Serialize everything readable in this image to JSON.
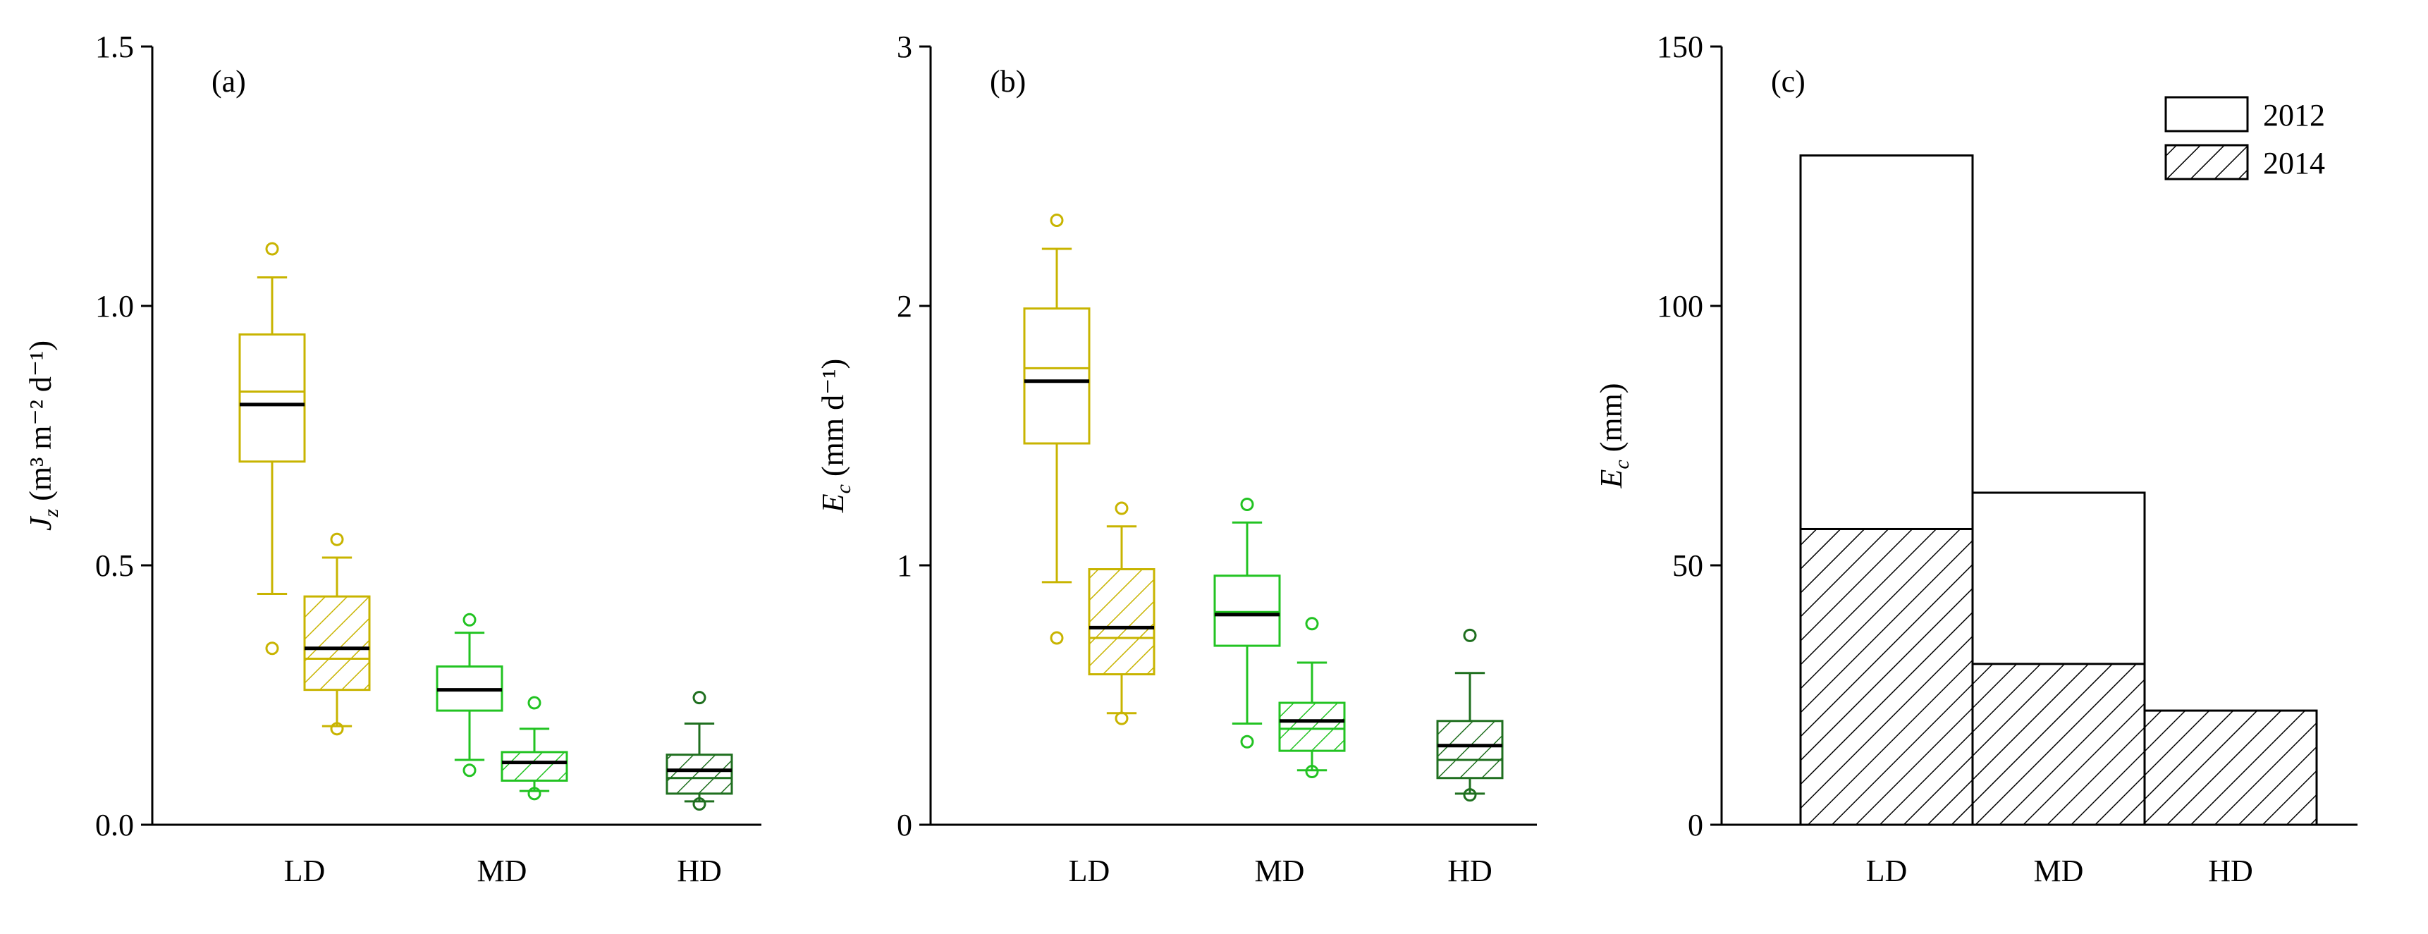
{
  "colors": {
    "LD": "#c8b400",
    "MD": "#22c322",
    "HD": "#1f6f1f",
    "median": "#000000",
    "axis": "#000000"
  },
  "chart_data": [
    {
      "type": "box",
      "panel_label": "(a)",
      "ylabel_main": "J",
      "ylabel_sub": "z",
      "ylabel_rest": " (m³ m⁻² d⁻¹)",
      "ylim": [
        0,
        1.5
      ],
      "yticks": [
        0,
        0.5,
        1.0,
        1.5
      ],
      "ytick_labels": [
        "0.0",
        "0.5",
        "1.0",
        "1.5"
      ],
      "categories": [
        "LD",
        "MD",
        "HD"
      ],
      "boxes": [
        {
          "category": "LD",
          "year": "2012",
          "hatched": false,
          "q1": 0.7,
          "median": 0.835,
          "mean": 0.81,
          "q3": 0.945,
          "whisker_low": 0.445,
          "whisker_high": 1.055,
          "outliers": [
            0.34,
            1.11
          ]
        },
        {
          "category": "LD",
          "year": "2014",
          "hatched": true,
          "q1": 0.26,
          "median": 0.32,
          "mean": 0.34,
          "q3": 0.44,
          "whisker_low": 0.19,
          "whisker_high": 0.515,
          "outliers": [
            0.185,
            0.55
          ]
        },
        {
          "category": "MD",
          "year": "2012",
          "hatched": false,
          "q1": 0.22,
          "median": 0.26,
          "mean": 0.26,
          "q3": 0.305,
          "whisker_low": 0.125,
          "whisker_high": 0.37,
          "outliers": [
            0.105,
            0.395
          ]
        },
        {
          "category": "MD",
          "year": "2014",
          "hatched": true,
          "q1": 0.085,
          "median": 0.12,
          "mean": 0.12,
          "q3": 0.14,
          "whisker_low": 0.065,
          "whisker_high": 0.185,
          "outliers": [
            0.06,
            0.235
          ]
        },
        {
          "category": "HD",
          "year": "2014",
          "hatched": true,
          "q1": 0.06,
          "median": 0.09,
          "mean": 0.105,
          "q3": 0.135,
          "whisker_low": 0.045,
          "whisker_high": 0.195,
          "outliers": [
            0.04,
            0.245
          ]
        }
      ]
    },
    {
      "type": "box",
      "panel_label": "(b)",
      "ylabel_main": "E",
      "ylabel_sub": "c",
      "ylabel_rest": " (mm d⁻¹)",
      "ylim": [
        0,
        3
      ],
      "yticks": [
        0,
        1,
        2,
        3
      ],
      "ytick_labels": [
        "0",
        "1",
        "2",
        "3"
      ],
      "categories": [
        "LD",
        "MD",
        "HD"
      ],
      "boxes": [
        {
          "category": "LD",
          "year": "2012",
          "hatched": false,
          "q1": 1.47,
          "median": 1.76,
          "mean": 1.71,
          "q3": 1.99,
          "whisker_low": 0.935,
          "whisker_high": 2.22,
          "outliers": [
            0.72,
            2.33
          ]
        },
        {
          "category": "LD",
          "year": "2014",
          "hatched": true,
          "q1": 0.58,
          "median": 0.72,
          "mean": 0.76,
          "q3": 0.985,
          "whisker_low": 0.43,
          "whisker_high": 1.15,
          "outliers": [
            0.41,
            1.22
          ]
        },
        {
          "category": "MD",
          "year": "2012",
          "hatched": false,
          "q1": 0.69,
          "median": 0.82,
          "mean": 0.81,
          "q3": 0.96,
          "whisker_low": 0.39,
          "whisker_high": 1.165,
          "outliers": [
            0.32,
            1.235
          ]
        },
        {
          "category": "MD",
          "year": "2014",
          "hatched": true,
          "q1": 0.285,
          "median": 0.37,
          "mean": 0.4,
          "q3": 0.47,
          "whisker_low": 0.21,
          "whisker_high": 0.625,
          "outliers": [
            0.205,
            0.775
          ]
        },
        {
          "category": "HD",
          "year": "2014",
          "hatched": true,
          "q1": 0.18,
          "median": 0.25,
          "mean": 0.305,
          "q3": 0.4,
          "whisker_low": 0.12,
          "whisker_high": 0.585,
          "outliers": [
            0.115,
            0.73
          ]
        }
      ]
    },
    {
      "type": "bar",
      "panel_label": "(c)",
      "ylabel_main": "E",
      "ylabel_sub": "c",
      "ylabel_rest": " (mm)",
      "ylim": [
        0,
        150
      ],
      "yticks": [
        0,
        50,
        100,
        150
      ],
      "ytick_labels": [
        "0",
        "50",
        "100",
        "150"
      ],
      "categories": [
        "LD",
        "MD",
        "HD"
      ],
      "series": [
        {
          "name": "2012",
          "hatched": false,
          "values": [
            129,
            64,
            null
          ]
        },
        {
          "name": "2014",
          "hatched": true,
          "values": [
            57,
            31,
            22
          ]
        }
      ],
      "legend": [
        "2012",
        "2014"
      ],
      "legend_position": "top-right"
    }
  ]
}
